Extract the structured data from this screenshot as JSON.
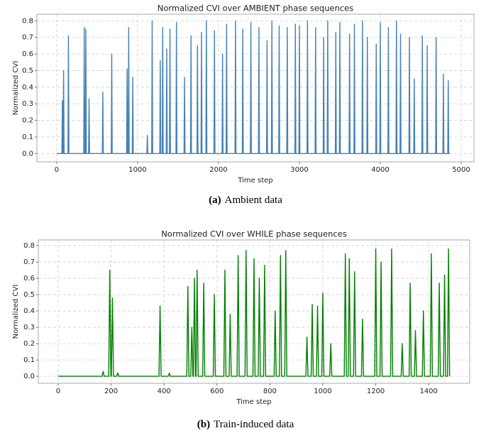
{
  "chart_data": [
    {
      "type": "line",
      "title": "Normalized CVI over AMBIENT phase sequences",
      "xlabel": "Time step",
      "ylabel": "Normalized CVI",
      "caption_label": "(a)",
      "caption": "Ambient data",
      "xlim": [
        -245,
        5158
      ],
      "ylim": [
        -0.05,
        0.84
      ],
      "xticks": [
        0,
        1000,
        2000,
        3000,
        4000,
        5000
      ],
      "yticks": [
        {
          "value": 0,
          "label": "0.0"
        },
        0.1,
        0.2,
        0.3,
        0.4,
        0.5,
        0.6,
        0.7,
        0.8
      ],
      "grid": true,
      "series": [
        {
          "name": "Normalized CVI",
          "color": "#4682b4",
          "x": [
            0,
            64,
            70,
            76,
            79,
            85,
            91,
            139,
            145,
            151,
            334,
            340,
            346,
            354,
            360,
            366,
            394,
            400,
            406,
            564,
            570,
            576,
            674,
            680,
            686,
            864,
            870,
            876,
            884,
            890,
            896,
            934,
            940,
            946,
            1114,
            1120,
            1126,
            1174,
            1180,
            1186,
            1274,
            1280,
            1286,
            1304,
            1310,
            1316,
            1354,
            1360,
            1366,
            1394,
            1400,
            1406,
            1474,
            1480,
            1486,
            1574,
            1580,
            1586,
            1654,
            1660,
            1666,
            1734,
            1740,
            1746,
            1784,
            1790,
            1796,
            1844,
            1850,
            1856,
            1944,
            1950,
            1956,
            2044,
            2050,
            2056,
            2094,
            2100,
            2106,
            2204,
            2210,
            2216,
            2294,
            2300,
            2306,
            2394,
            2400,
            2406,
            2494,
            2500,
            2506,
            2594,
            2600,
            2606,
            2654,
            2660,
            2666,
            2744,
            2750,
            2756,
            2844,
            2850,
            2856,
            2944,
            2950,
            2956,
            2994,
            3000,
            3006,
            3094,
            3100,
            3106,
            3194,
            3200,
            3206,
            3294,
            3300,
            3306,
            3344,
            3350,
            3356,
            3444,
            3450,
            3456,
            3494,
            3500,
            3506,
            3614,
            3620,
            3626,
            3674,
            3680,
            3686,
            3774,
            3780,
            3786,
            3834,
            3840,
            3846,
            3944,
            3950,
            3956,
            3994,
            4000,
            4006,
            4094,
            4100,
            4106,
            4194,
            4200,
            4206,
            4244,
            4250,
            4256,
            4354,
            4360,
            4366,
            4414,
            4420,
            4426,
            4514,
            4520,
            4526,
            4574,
            4580,
            4586,
            4684,
            4690,
            4696,
            4774,
            4780,
            4786,
            4834,
            4840,
            4846,
            4860
          ],
          "values": [
            0,
            0,
            0.32,
            0,
            0,
            0.5,
            0,
            0,
            0.71,
            0,
            0,
            0.76,
            0,
            0,
            0.75,
            0,
            0,
            0.33,
            0,
            0,
            0.37,
            0,
            0,
            0.6,
            0,
            0,
            0.51,
            0,
            0,
            0.76,
            0,
            0,
            0.46,
            0,
            0,
            0.11,
            0,
            0,
            0.8,
            0,
            0,
            0.56,
            0,
            0,
            0.76,
            0,
            0,
            0.63,
            0,
            0,
            0.75,
            0,
            0,
            0.79,
            0,
            0,
            0.46,
            0,
            0,
            0.71,
            0,
            0,
            0.65,
            0,
            0,
            0.73,
            0,
            0,
            0.8,
            0,
            0,
            0.74,
            0,
            0,
            0.6,
            0,
            0,
            0.78,
            0,
            0,
            0.8,
            0,
            0,
            0.75,
            0,
            0,
            0.79,
            0,
            0,
            0.76,
            0,
            0,
            0.68,
            0,
            0,
            0.8,
            0,
            0,
            0.77,
            0,
            0,
            0.76,
            0,
            0,
            0.78,
            0,
            0,
            0.77,
            0,
            0,
            0.8,
            0,
            0,
            0.76,
            0,
            0,
            0.7,
            0,
            0,
            0.8,
            0,
            0,
            0.73,
            0,
            0,
            0.79,
            0,
            0,
            0.72,
            0,
            0,
            0.78,
            0,
            0,
            0.8,
            0,
            0,
            0.7,
            0,
            0,
            0.66,
            0,
            0,
            0.79,
            0,
            0,
            0.76,
            0,
            0,
            0.8,
            0,
            0,
            0.72,
            0,
            0,
            0.7,
            0,
            0,
            0.45,
            0,
            0,
            0.71,
            0,
            0,
            0.65,
            0,
            0,
            0.7,
            0,
            0,
            0.48,
            0,
            0,
            0.44,
            0,
            0
          ]
        }
      ]
    },
    {
      "type": "line",
      "title": "Normalized CVI over WHILE phase sequences",
      "xlabel": "Time step",
      "ylabel": "Normalized CVI",
      "caption_label": "(b)",
      "caption": "Train-induced data",
      "xlim": [
        -75,
        1555
      ],
      "ylim": [
        -0.043,
        0.835
      ],
      "xticks": [
        0,
        200,
        400,
        600,
        800,
        1000,
        1200,
        1400
      ],
      "yticks": [
        {
          "value": 0,
          "label": "0.0"
        },
        0.1,
        0.2,
        0.3,
        0.4,
        0.5,
        0.6,
        0.7,
        0.8
      ],
      "grid": true,
      "series": [
        {
          "name": "Normalized CVI",
          "color": "#008000",
          "x": [
            0,
            166,
            170,
            174,
            191,
            195,
            199,
            201,
            205,
            209,
            221,
            225,
            229,
            381,
            385,
            389,
            416,
            420,
            424,
            486,
            490,
            494,
            501,
            505,
            509,
            511,
            515,
            519,
            521,
            525,
            529,
            546,
            550,
            554,
            586,
            590,
            594,
            626,
            630,
            634,
            646,
            650,
            654,
            676,
            680,
            684,
            706,
            710,
            714,
            736,
            740,
            744,
            756,
            760,
            764,
            776,
            780,
            784,
            816,
            820,
            824,
            836,
            840,
            844,
            856,
            860,
            864,
            936,
            940,
            944,
            956,
            960,
            964,
            976,
            980,
            984,
            996,
            1000,
            1004,
            1026,
            1030,
            1034,
            1081,
            1085,
            1089,
            1096,
            1100,
            1104,
            1116,
            1120,
            1124,
            1146,
            1150,
            1154,
            1196,
            1200,
            1204,
            1216,
            1220,
            1224,
            1256,
            1260,
            1264,
            1296,
            1300,
            1304,
            1326,
            1330,
            1334,
            1346,
            1350,
            1354,
            1376,
            1380,
            1384,
            1406,
            1410,
            1414,
            1436,
            1440,
            1444,
            1456,
            1460,
            1464,
            1471,
            1475,
            1479
          ],
          "values": [
            0,
            0,
            0.03,
            0,
            0,
            0.65,
            0,
            0,
            0.48,
            0,
            0,
            0.02,
            0,
            0,
            0.43,
            0,
            0,
            0.02,
            0,
            0,
            0.55,
            0,
            0,
            0.3,
            0,
            0,
            0.6,
            0,
            0,
            0.65,
            0,
            0,
            0.57,
            0,
            0,
            0.5,
            0,
            0,
            0.65,
            0,
            0,
            0.38,
            0,
            0,
            0.74,
            0,
            0,
            0.77,
            0,
            0,
            0.72,
            0,
            0,
            0.6,
            0,
            0,
            0.68,
            0,
            0,
            0.4,
            0,
            0,
            0.74,
            0,
            0,
            0.77,
            0,
            0,
            0.24,
            0,
            0,
            0.44,
            0,
            0,
            0.43,
            0,
            0,
            0.51,
            0,
            0,
            0.2,
            0,
            0,
            0.75,
            0,
            0,
            0.72,
            0,
            0,
            0.64,
            0,
            0,
            0.35,
            0,
            0,
            0.78,
            0,
            0,
            0.7,
            0,
            0,
            0.78,
            0,
            0,
            0.2,
            0,
            0,
            0.57,
            0,
            0,
            0.28,
            0,
            0,
            0.4,
            0,
            0,
            0.75,
            0,
            0,
            0.57,
            0,
            0,
            0.62,
            0,
            0,
            0.78,
            0
          ]
        }
      ]
    }
  ]
}
